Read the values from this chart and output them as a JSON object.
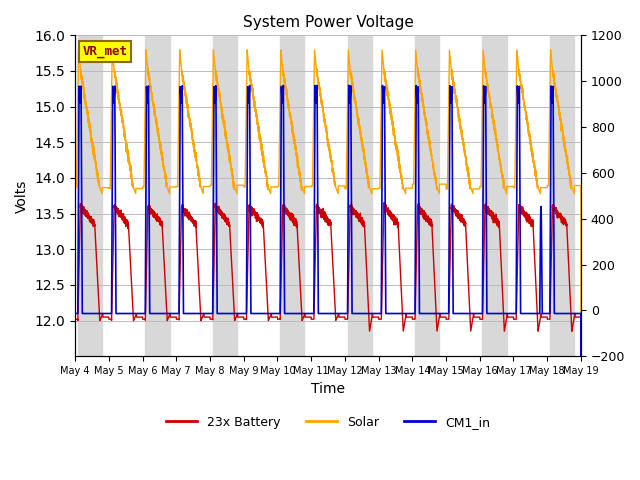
{
  "title": "System Power Voltage",
  "xlabel": "Time",
  "ylabel_left": "Volts",
  "ylim_left": [
    11.5,
    16.0
  ],
  "ylim_right": [
    -200,
    1200
  ],
  "annotation_text": "VR_met",
  "annotation_color": "#8B0000",
  "annotation_bg": "#FFFF00",
  "annotation_border": "#8B6914",
  "bg_color": "#ffffff",
  "band_color": "#d8d8d8",
  "line_colors": {
    "battery": "#cc0000",
    "solar": "#ffa500",
    "cm1": "#0000cc"
  },
  "legend_labels": [
    "23x Battery",
    "Solar",
    "CM1_in"
  ],
  "x_tick_labels": [
    "May 4",
    "May 5",
    "May 6",
    "May 7",
    "May 8",
    "May 9",
    "May 10",
    "May 11",
    "May 12",
    "May 13",
    "May 14",
    "May 15",
    "May 16",
    "May 17",
    "May 18",
    "May 19"
  ],
  "n_days": 15,
  "right_yticks": [
    -200,
    0,
    200,
    400,
    600,
    800,
    1000,
    1200
  ],
  "left_yticks": [
    12.0,
    12.5,
    13.0,
    13.5,
    14.0,
    14.5,
    15.0,
    15.5,
    16.0
  ]
}
